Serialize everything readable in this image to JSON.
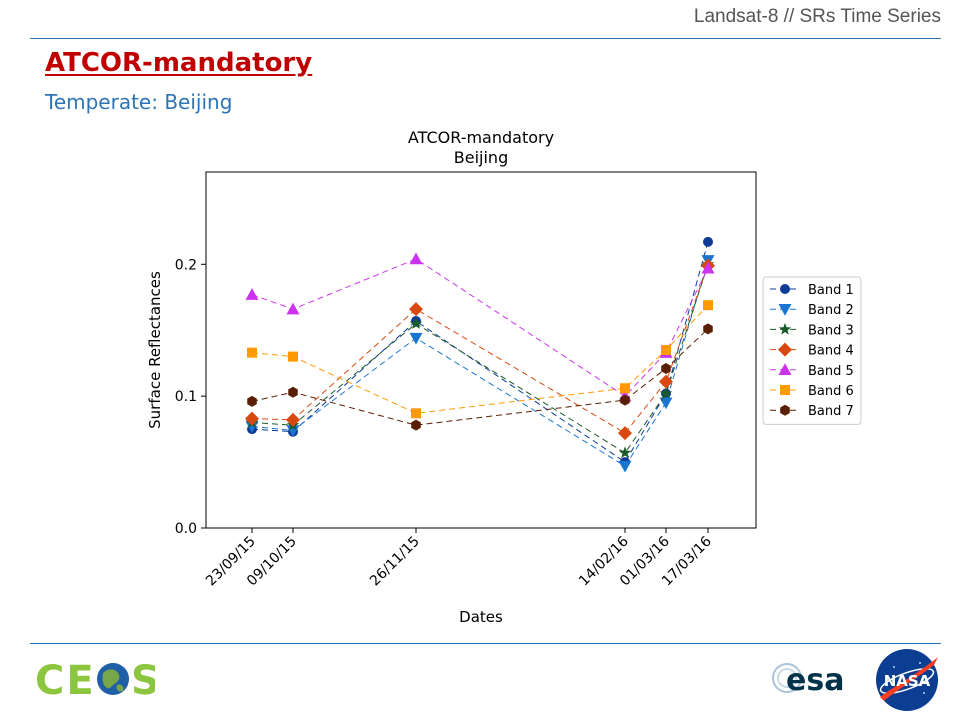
{
  "header": {
    "deck_title": "Landsat-8 // SRs Time Series",
    "slide_title": "ATCOR-mandatory",
    "slide_subtitle": "Temperate: Beijing"
  },
  "colors": {
    "title_red": "#c00000",
    "subtitle_blue": "#2e74b5",
    "rule_blue": "#2e74b5"
  },
  "logos": {
    "ceos": "CEOS",
    "esa": "esa",
    "nasa": "NASA"
  },
  "chart_data": {
    "type": "line",
    "title": "ATCOR-mandatory",
    "subtitle": "Beijing",
    "xlabel": "Dates",
    "ylabel": "Surface Reflectances",
    "x": [
      "2015-09-23",
      "2015-10-09",
      "2015-11-26",
      "2016-02-14",
      "2016-03-01",
      "2016-03-17"
    ],
    "xtick_labels": [
      "23/09/15",
      "09/10/15",
      "26/11/15",
      "14/02/16",
      "01/03/16",
      "17/03/16"
    ],
    "ylim": [
      0,
      0.27
    ],
    "yticks": [
      0.0,
      0.1,
      0.2
    ],
    "ytick_labels": [
      "0.0",
      "0.1",
      "0.2"
    ],
    "grid": false,
    "legend_position": "outside-right",
    "series": [
      {
        "name": "Band 1",
        "color": "#0c3c98",
        "marker": "circle",
        "values": [
          0.075,
          0.073,
          0.157,
          0.05,
          0.102,
          0.217
        ]
      },
      {
        "name": "Band 2",
        "color": "#1a75cf",
        "marker": "triangle-down",
        "values": [
          0.077,
          0.074,
          0.144,
          0.047,
          0.095,
          0.203
        ]
      },
      {
        "name": "Band 3",
        "color": "#1a5a2a",
        "marker": "star",
        "values": [
          0.08,
          0.078,
          0.155,
          0.057,
          0.102,
          0.2
        ]
      },
      {
        "name": "Band 4",
        "color": "#d9480f",
        "marker": "diamond",
        "values": [
          0.083,
          0.082,
          0.166,
          0.072,
          0.111,
          0.199
        ]
      },
      {
        "name": "Band 5",
        "color": "#cc33ee",
        "marker": "triangle-up",
        "values": [
          0.177,
          0.166,
          0.204,
          0.1,
          0.133,
          0.197
        ]
      },
      {
        "name": "Band 6",
        "color": "#ff9900",
        "marker": "square",
        "values": [
          0.133,
          0.13,
          0.087,
          0.106,
          0.135,
          0.169
        ]
      },
      {
        "name": "Band 7",
        "color": "#5a1e02",
        "marker": "hexagon",
        "values": [
          0.096,
          0.103,
          0.078,
          0.097,
          0.121,
          0.151
        ]
      }
    ]
  }
}
